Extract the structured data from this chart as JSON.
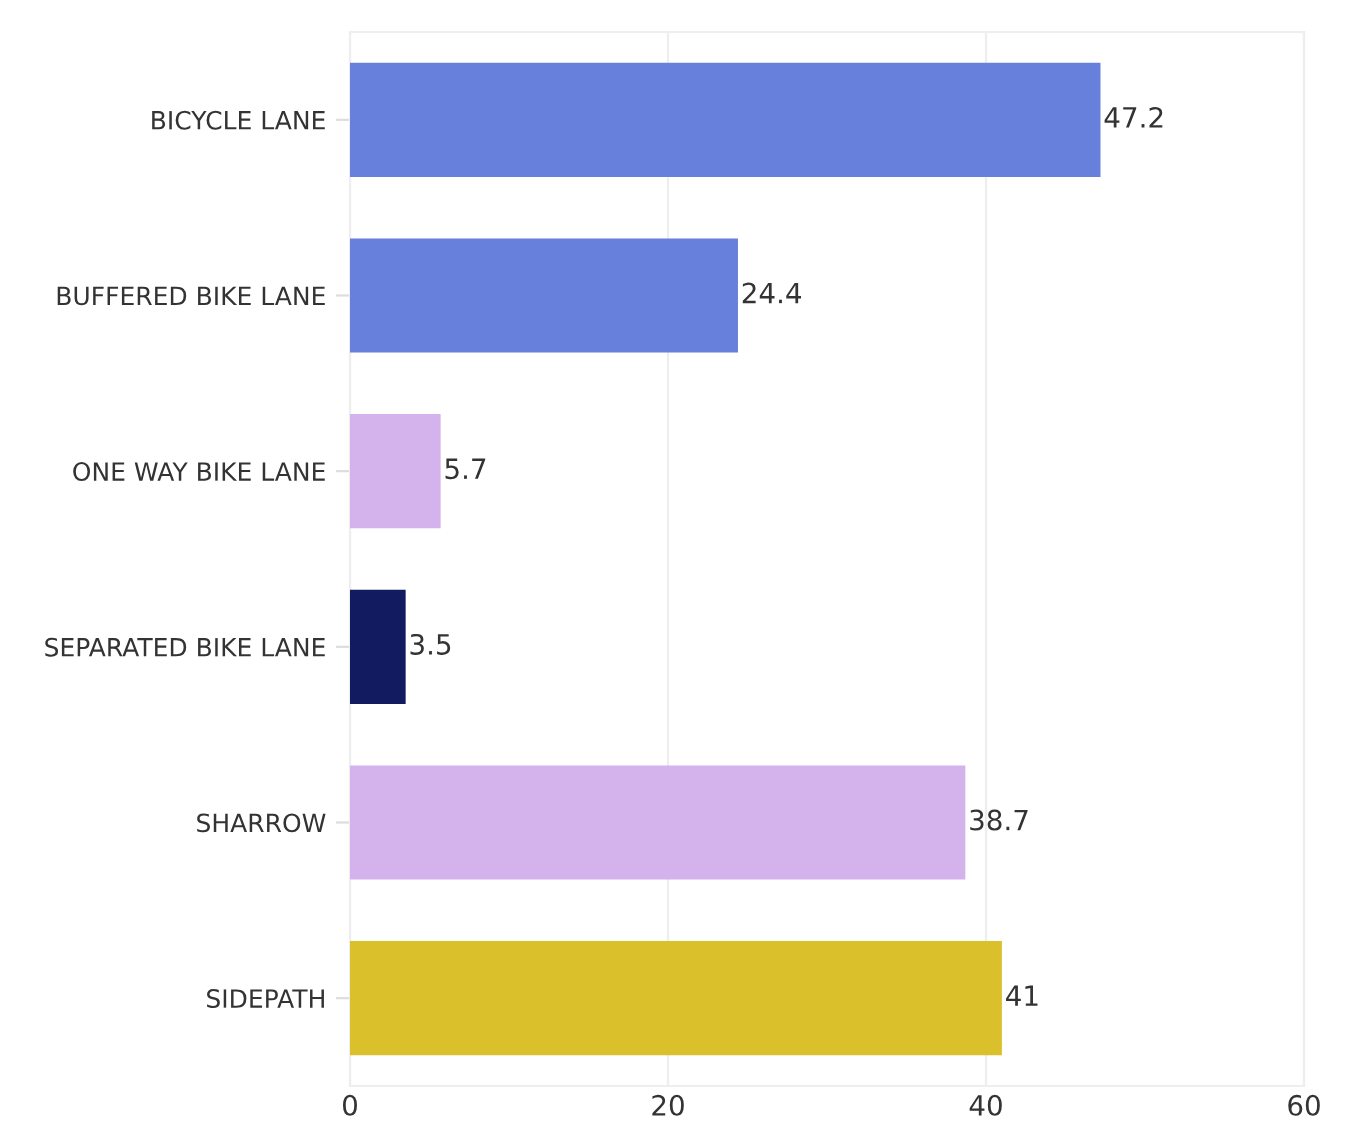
{
  "chart_data": {
    "type": "bar",
    "orientation": "horizontal",
    "categories": [
      "BICYCLE LANE",
      "BUFFERED BIKE LANE",
      "ONE WAY BIKE LANE",
      "SEPARATED BIKE LANE",
      "SHARROW",
      "SIDEPATH"
    ],
    "values": [
      47.2,
      24.4,
      5.7,
      3.5,
      38.7,
      41
    ],
    "colors": [
      "#6780db",
      "#6780db",
      "#d4b2eb",
      "#121a60",
      "#d4b2eb",
      "#dac02b"
    ],
    "xlim": [
      0,
      60
    ],
    "xticks": [
      0,
      20,
      40,
      60
    ],
    "grid": "x",
    "data_labels": true
  }
}
